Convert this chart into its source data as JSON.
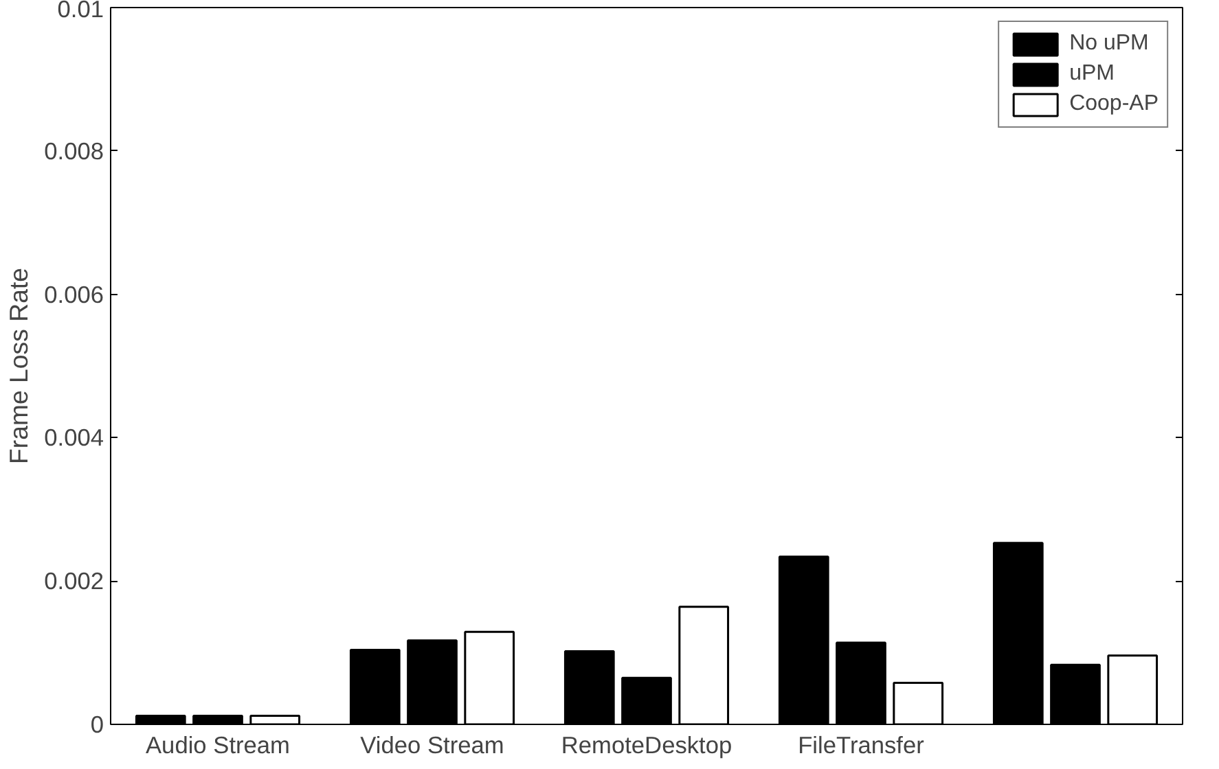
{
  "chart_data": {
    "type": "bar",
    "ylabel": "Frame Loss Rate",
    "categories": [
      "Audio Stream",
      "Video Stream",
      "RemoteDesktop",
      "FileTransfer",
      null
    ],
    "series": [
      {
        "name": "No uPM",
        "color": "#000000",
        "values": [
          0.00012,
          0.00104,
          0.00102,
          0.00234,
          0.00253
        ]
      },
      {
        "name": "uPM",
        "color": "#000000",
        "values": [
          0.00012,
          0.00117,
          0.00065,
          0.00114,
          0.00083
        ]
      },
      {
        "name": "Coop-AP",
        "color": "#ffffff",
        "values": [
          0.00012,
          0.00129,
          0.00164,
          0.00058,
          0.00096
        ]
      }
    ],
    "ylim": [
      0,
      0.01
    ],
    "yticks": [
      0,
      0.002,
      0.004,
      0.006,
      0.008,
      0.01
    ],
    "grid": false,
    "legend": "top right"
  }
}
